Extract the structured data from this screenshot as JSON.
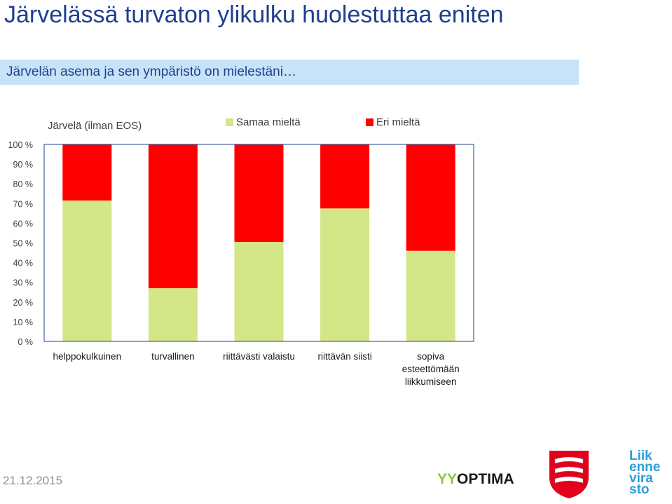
{
  "header": {
    "title": "Järvelässä turvaton ylikulku huolestuttaa eniten",
    "subtitle": "Järvelän asema ja sen ympäristö on mielestäni…"
  },
  "chart_data": {
    "type": "bar",
    "stacked": true,
    "title": "Järvelä (ilman EOS)",
    "categories": [
      [
        "helppokulkuinen"
      ],
      [
        "turvallinen"
      ],
      [
        "riittävästi valaistu"
      ],
      [
        "riittävän siisti"
      ],
      [
        "sopiva",
        "esteettömään",
        "liikkumiseen"
      ]
    ],
    "series": [
      {
        "name": "Samaa mieltä",
        "color": "#d3e688",
        "values": [
          71.5,
          27,
          50.5,
          67.5,
          46
        ]
      },
      {
        "name": "Eri mieltä",
        "color": "#ff0000",
        "values": [
          28.5,
          73,
          49.5,
          32.5,
          54
        ]
      }
    ],
    "y_ticks": [
      "0 %",
      "10 %",
      "20 %",
      "30 %",
      "40 %",
      "50 %",
      "60 %",
      "70 %",
      "80 %",
      "90 %",
      "100 %"
    ],
    "ylim": [
      0,
      100
    ],
    "grid": false,
    "legend": "top"
  },
  "footer": {
    "date": "21.12.2015",
    "logos": {
      "yyoptima": {
        "y_part": "YY",
        "text": "OPTIMA",
        "icon": "yyoptima-logo"
      },
      "crest": {
        "icon": "coat-of-arms-icon"
      },
      "liikennevirasto": {
        "lines": [
          "Liik",
          "enne",
          "vira",
          "sto"
        ],
        "icon": "liikennevirasto-logo"
      }
    }
  }
}
